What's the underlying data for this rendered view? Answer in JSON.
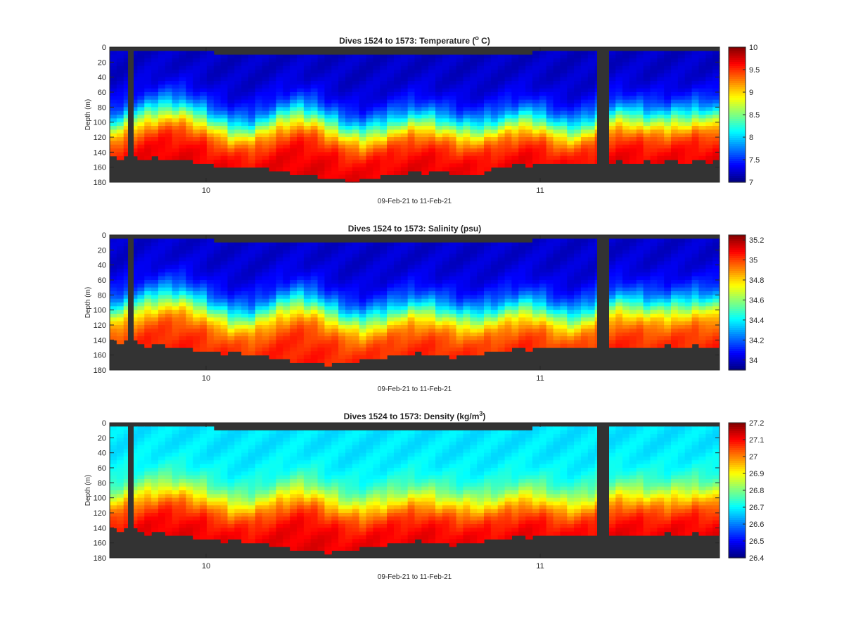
{
  "chart_data": [
    {
      "type": "heatmap",
      "title_prefix": "Dives 1524 to 1573: Temperature (",
      "title_sup": "o",
      "title_suffix": " C)",
      "ylabel": "Depth (m)",
      "xlabel": "09-Feb-21 to 11-Feb-21",
      "xticks": [
        "10",
        "11"
      ],
      "yticks": [
        "0",
        "20",
        "40",
        "60",
        "80",
        "100",
        "120",
        "140",
        "160",
        "180"
      ],
      "ylim": [
        0,
        180
      ],
      "colorbar": {
        "min": 7,
        "max": 10,
        "ticks": [
          "7",
          "7.5",
          "8",
          "8.5",
          "9",
          "9.5",
          "10"
        ]
      },
      "colormap": "jet",
      "bottom_depth_m": [
        145,
        146,
        148,
        149,
        150,
        152,
        155,
        158,
        160,
        161,
        162,
        165,
        168,
        172,
        176,
        178,
        177,
        174,
        170,
        168,
        166,
        165,
        168,
        170,
        166,
        158,
        157,
        156,
        156,
        155,
        155,
        155,
        154,
        154,
        154,
        153,
        152,
        152,
        152,
        152
      ],
      "thermocline_depth_m": [
        110,
        100,
        92,
        85,
        82,
        86,
        95,
        105,
        112,
        112,
        104,
        94,
        88,
        92,
        102,
        112,
        117,
        112,
        106,
        100,
        98,
        102,
        108,
        112,
        110,
        104,
        98,
        96,
        104,
        112,
        112,
        102,
        94,
        92,
        96,
        98,
        96,
        94,
        92,
        94
      ],
      "surface_value": 7.2,
      "deep_value": 9.7
    },
    {
      "type": "heatmap",
      "title_prefix": "Dives 1524 to 1573: Salinity (psu)",
      "title_sup": "",
      "title_suffix": "",
      "ylabel": "Depth (m)",
      "xlabel": "09-Feb-21 to 11-Feb-21",
      "xticks": [
        "10",
        "11"
      ],
      "yticks": [
        "0",
        "20",
        "40",
        "60",
        "80",
        "100",
        "120",
        "140",
        "160",
        "180"
      ],
      "ylim": [
        0,
        180
      ],
      "colorbar": {
        "min": 33.9,
        "max": 35.25,
        "ticks": [
          "34",
          "34.2",
          "34.4",
          "34.6",
          "34.8",
          "35",
          "35.2"
        ]
      },
      "colormap": "jet",
      "bottom_depth_m": [
        140,
        142,
        145,
        148,
        150,
        152,
        155,
        157,
        158,
        160,
        162,
        165,
        168,
        170,
        172,
        170,
        168,
        165,
        162,
        160,
        158,
        160,
        163,
        162,
        158,
        154,
        152,
        151,
        151,
        150,
        150,
        150,
        150,
        150,
        150,
        149,
        149,
        149,
        149,
        149
      ],
      "thermocline_depth_m": [
        105,
        98,
        92,
        85,
        82,
        86,
        95,
        105,
        112,
        112,
        104,
        94,
        88,
        92,
        102,
        112,
        117,
        112,
        106,
        100,
        98,
        102,
        108,
        112,
        110,
        104,
        98,
        96,
        104,
        112,
        112,
        102,
        94,
        92,
        96,
        98,
        96,
        94,
        92,
        94
      ],
      "surface_value": 34.0,
      "deep_value": 35.05
    },
    {
      "type": "heatmap",
      "title_prefix": "Dives 1524 to 1573: Density (kg/m",
      "title_sup": "3",
      "title_suffix": ")",
      "ylabel": "Depth (m)",
      "xlabel": "09-Feb-21 to 11-Feb-21",
      "xticks": [
        "10",
        "11"
      ],
      "yticks": [
        "0",
        "20",
        "40",
        "60",
        "80",
        "100",
        "120",
        "140",
        "160",
        "180"
      ],
      "ylim": [
        0,
        180
      ],
      "colorbar": {
        "min": 26.4,
        "max": 27.2,
        "ticks": [
          "26.4",
          "26.5",
          "26.6",
          "26.7",
          "26.8",
          "26.9",
          "27",
          "27.1",
          "27.2"
        ]
      },
      "colormap": "jet",
      "bottom_depth_m": [
        140,
        142,
        145,
        148,
        150,
        152,
        155,
        157,
        158,
        160,
        162,
        165,
        168,
        170,
        172,
        170,
        168,
        165,
        162,
        160,
        158,
        160,
        163,
        162,
        158,
        154,
        152,
        151,
        151,
        150,
        150,
        150,
        150,
        150,
        150,
        149,
        149,
        149,
        149,
        149
      ],
      "thermocline_depth_m": [
        108,
        100,
        95,
        90,
        88,
        92,
        98,
        106,
        112,
        112,
        106,
        98,
        92,
        95,
        104,
        112,
        115,
        110,
        106,
        102,
        100,
        104,
        108,
        110,
        110,
        106,
        100,
        98,
        104,
        110,
        110,
        104,
        98,
        96,
        98,
        100,
        98,
        96,
        96,
        98
      ],
      "surface_value": 26.68,
      "deep_value": 27.12
    }
  ]
}
